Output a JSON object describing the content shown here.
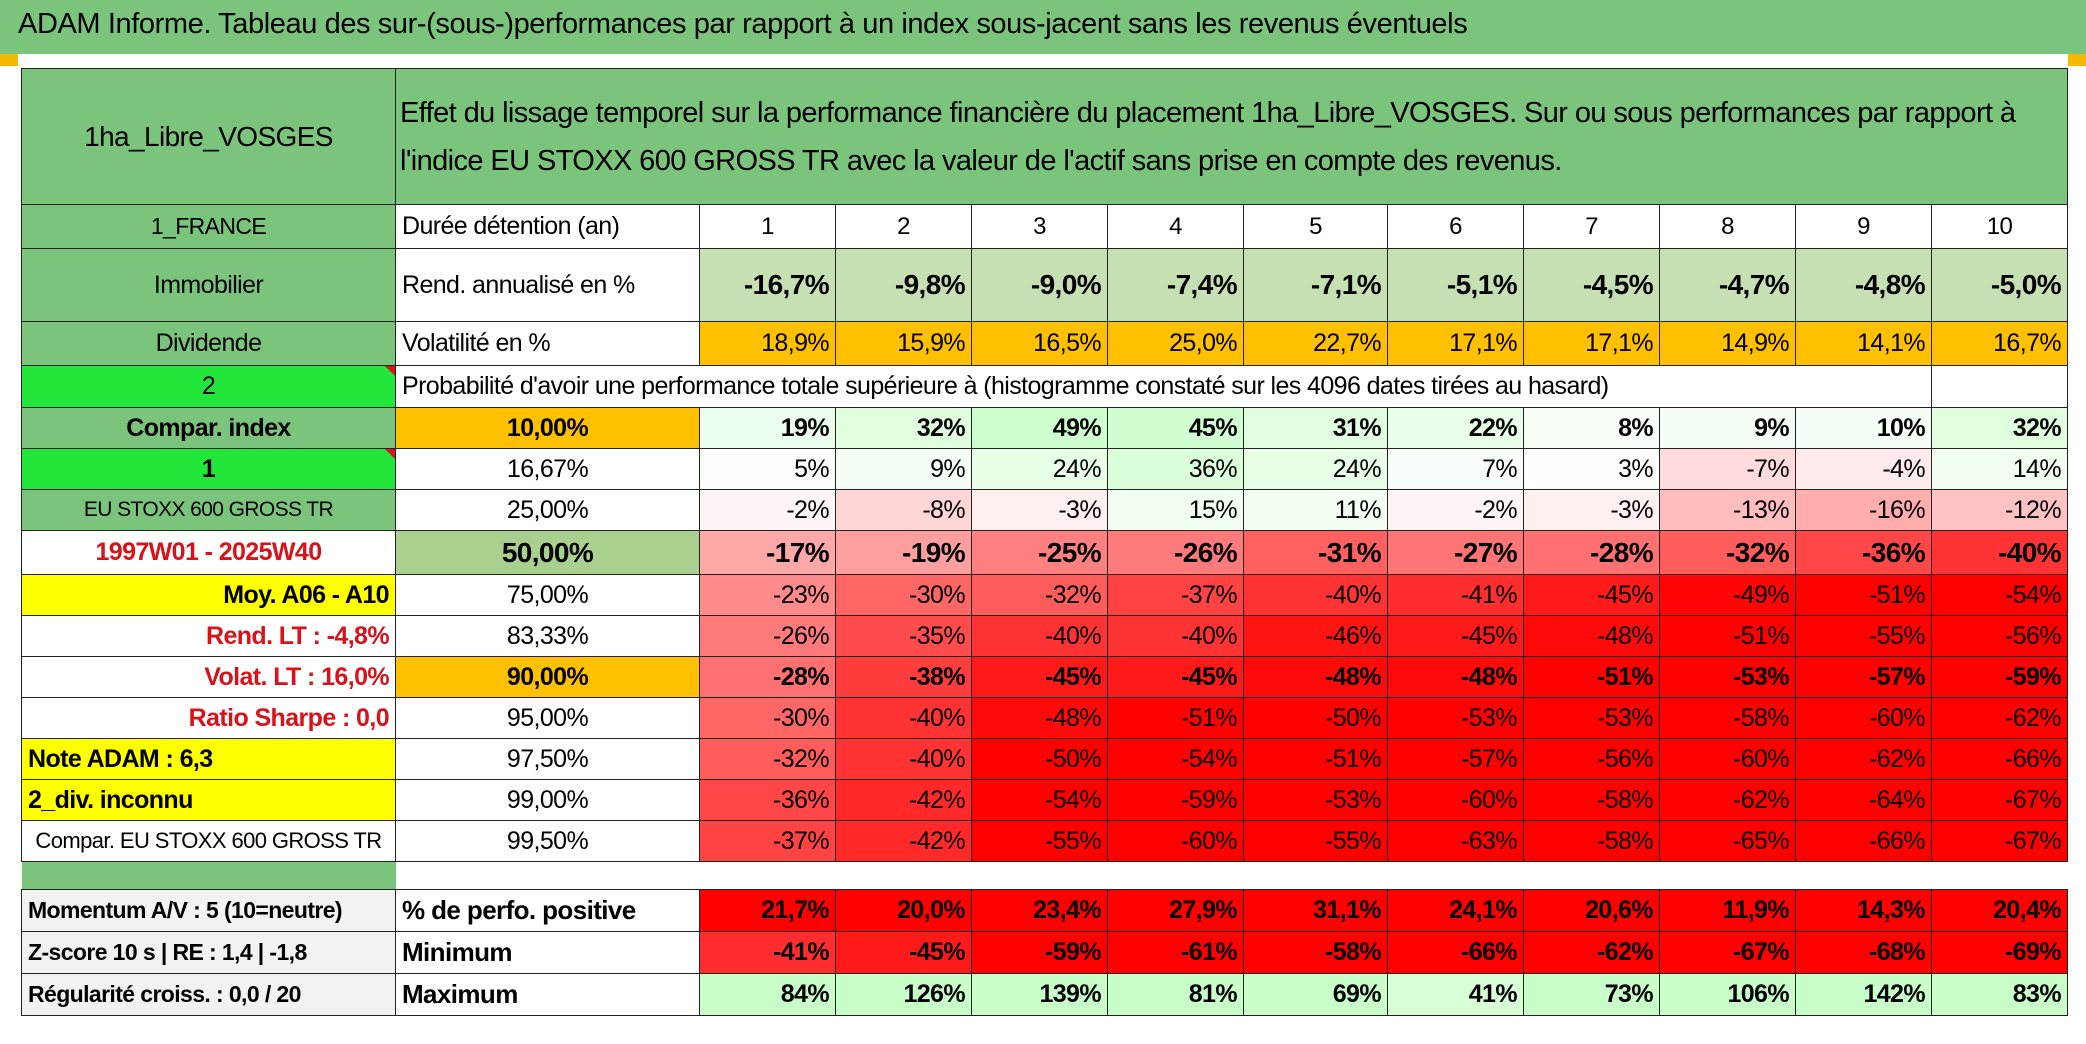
{
  "banner": {
    "title": "ADAM Informe. Tableau des sur-(sous-)performances par rapport à un index sous-jacent sans les revenus éventuels"
  },
  "header": {
    "fund_name": "1ha_Libre_VOSGES",
    "description": "Effet du lissage temporel sur la performance financière du placement 1ha_Libre_VOSGES. Sur ou sous performances par rapport à l'indice EU STOXX 600 GROSS TR avec la valeur de l'actif sans prise en compte des revenus."
  },
  "left_labels": {
    "country": "1_FRANCE",
    "asset_class": "Immobilier",
    "income_type": "Dividende",
    "index_code": "2",
    "compar_index": "Compar. index",
    "index_flag": "1",
    "index_name": "EU STOXX 600 GROSS TR",
    "period": "1997W01 - 2025W40",
    "avg_range": "Moy. A06 - A10",
    "rend_lt": "Rend. LT :    -4,8%",
    "volat_lt": "Volat. LT :    16,0%",
    "sharpe": "Ratio Sharpe :    0,0",
    "note_adam": "Note ADAM : 6,3",
    "div_status": "2_div. inconnu",
    "compar_full": "Compar. EU STOXX 600 GROSS TR",
    "momentum": "Momentum A/V : 5 (10=neutre)",
    "zscore": "Z-score 10 s | RE : 1,4 | -1,8",
    "regularite": "Régularité croiss. : 0,0 / 20"
  },
  "row_labels": {
    "duration": "Durée détention (an)",
    "rend": "Rend. annualisé en %",
    "vol": "Volatilité en %",
    "prob_title": "Probabilité d'avoir une performance totale supérieure à (histogramme constaté sur les 4096 dates tirées au hasard)",
    "pct_positive": "% de perfo. positive",
    "minimum": "Minimum",
    "maximum": "Maximum"
  },
  "years": [
    "1",
    "2",
    "3",
    "4",
    "5",
    "6",
    "7",
    "8",
    "9",
    "10"
  ],
  "rend": [
    "-16,7%",
    "-9,8%",
    "-9,0%",
    "-7,4%",
    "-7,1%",
    "-5,1%",
    "-4,5%",
    "-4,7%",
    "-4,8%",
    "-5,0%"
  ],
  "vol": [
    "18,9%",
    "15,9%",
    "16,5%",
    "25,0%",
    "22,7%",
    "17,1%",
    "17,1%",
    "14,9%",
    "14,1%",
    "16,7%"
  ],
  "vol_highlight": [
    true,
    false,
    false,
    true,
    true,
    false,
    false,
    false,
    false,
    false
  ],
  "prob_rows": [
    {
      "level": "10,00%",
      "vals": [
        "19%",
        "32%",
        "49%",
        "45%",
        "31%",
        "22%",
        "8%",
        "9%",
        "10%",
        "32%"
      ],
      "bold": true
    },
    {
      "level": "16,67%",
      "vals": [
        "5%",
        "9%",
        "24%",
        "36%",
        "24%",
        "7%",
        "3%",
        "-7%",
        "-4%",
        "14%"
      ],
      "bold": false
    },
    {
      "level": "25,00%",
      "vals": [
        "-2%",
        "-8%",
        "-3%",
        "15%",
        "11%",
        "-2%",
        "-3%",
        "-13%",
        "-16%",
        "-12%"
      ],
      "bold": false
    },
    {
      "level": "50,00%",
      "vals": [
        "-17%",
        "-19%",
        "-25%",
        "-26%",
        "-31%",
        "-27%",
        "-28%",
        "-32%",
        "-36%",
        "-40%"
      ],
      "bold": true
    },
    {
      "level": "75,00%",
      "vals": [
        "-23%",
        "-30%",
        "-32%",
        "-37%",
        "-40%",
        "-41%",
        "-45%",
        "-49%",
        "-51%",
        "-54%"
      ],
      "bold": false
    },
    {
      "level": "83,33%",
      "vals": [
        "-26%",
        "-35%",
        "-40%",
        "-40%",
        "-46%",
        "-45%",
        "-48%",
        "-51%",
        "-55%",
        "-56%"
      ],
      "bold": false
    },
    {
      "level": "90,00%",
      "vals": [
        "-28%",
        "-38%",
        "-45%",
        "-45%",
        "-48%",
        "-48%",
        "-51%",
        "-53%",
        "-57%",
        "-59%"
      ],
      "bold": true
    },
    {
      "level": "95,00%",
      "vals": [
        "-30%",
        "-40%",
        "-48%",
        "-51%",
        "-50%",
        "-53%",
        "-53%",
        "-58%",
        "-60%",
        "-62%"
      ],
      "bold": false
    },
    {
      "level": "97,50%",
      "vals": [
        "-32%",
        "-40%",
        "-50%",
        "-54%",
        "-51%",
        "-57%",
        "-56%",
        "-60%",
        "-62%",
        "-66%"
      ],
      "bold": false
    },
    {
      "level": "99,00%",
      "vals": [
        "-36%",
        "-42%",
        "-54%",
        "-59%",
        "-53%",
        "-60%",
        "-58%",
        "-62%",
        "-64%",
        "-67%"
      ],
      "bold": false
    },
    {
      "level": "99,50%",
      "vals": [
        "-37%",
        "-42%",
        "-55%",
        "-60%",
        "-55%",
        "-63%",
        "-58%",
        "-65%",
        "-66%",
        "-67%"
      ],
      "bold": false
    }
  ],
  "pct_positive": [
    "21,7%",
    "20,0%",
    "23,4%",
    "27,9%",
    "31,1%",
    "24,1%",
    "20,6%",
    "11,9%",
    "14,3%",
    "20,4%"
  ],
  "minimum": [
    "-41%",
    "-45%",
    "-59%",
    "-61%",
    "-58%",
    "-66%",
    "-62%",
    "-67%",
    "-68%",
    "-69%"
  ],
  "maximum": [
    "84%",
    "126%",
    "139%",
    "81%",
    "69%",
    "41%",
    "73%",
    "106%",
    "142%",
    "83%"
  ],
  "colors": {
    "header_green": "#7ac47c",
    "bright_green": "#22e63a",
    "orange": "#ffc000",
    "yellow": "#ffff00",
    "red_text": "#d9121a",
    "rend_green": "#c6e0b4"
  }
}
